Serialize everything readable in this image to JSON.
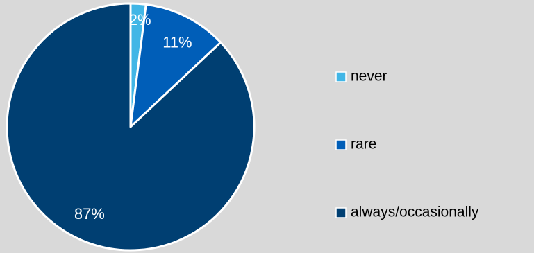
{
  "chart_data": {
    "type": "pie",
    "categories": [
      "never",
      "rare",
      "always/occasionally"
    ],
    "values": [
      2,
      11,
      87
    ],
    "data_labels": [
      "2%",
      "11%",
      "87%"
    ],
    "colors": [
      "#41b6e6",
      "#005eb8",
      "#003f72"
    ],
    "slice_border_color": "#ffffff",
    "legend_position": "right",
    "start_angle": "12 o'clock",
    "direction": "clockwise"
  }
}
